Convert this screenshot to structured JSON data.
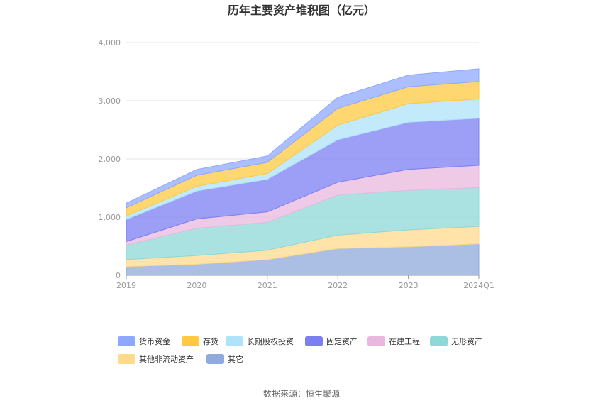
{
  "chart_data": {
    "type": "area",
    "stacked": true,
    "title": "历年主要资产堆积图（亿元）",
    "categories": [
      "2019",
      "2020",
      "2021",
      "2022",
      "2023",
      "2024Q1"
    ],
    "y_ticks": [
      "0",
      "1,000",
      "2,000",
      "3,000",
      "4,000"
    ],
    "ylim": [
      0,
      4000
    ],
    "grid": true,
    "legend_position": "bottom",
    "source": "数据来源：恒生聚源",
    "series": [
      {
        "name": "其它",
        "color": "#8faadc",
        "values": [
          150,
          190,
          270,
          460,
          490,
          540
        ]
      },
      {
        "name": "其他非流动资产",
        "color": "#ffd98c",
        "values": [
          120,
          150,
          160,
          230,
          290,
          300
        ]
      },
      {
        "name": "无形资产",
        "color": "#8ed8d8",
        "values": [
          250,
          470,
          480,
          690,
          680,
          670
        ]
      },
      {
        "name": "在建工程",
        "color": "#e9b8de",
        "values": [
          60,
          160,
          180,
          220,
          360,
          380
        ]
      },
      {
        "name": "固定资产",
        "color": "#7b7ff2",
        "values": [
          380,
          480,
          560,
          730,
          810,
          810
        ]
      },
      {
        "name": "长期股权投资",
        "color": "#aee3fa",
        "values": [
          60,
          80,
          100,
          250,
          320,
          330
        ]
      },
      {
        "name": "存货",
        "color": "#ffc940",
        "values": [
          140,
          190,
          190,
          290,
          290,
          300
        ]
      },
      {
        "name": "货币资金",
        "color": "#8fa8ff",
        "values": [
          80,
          100,
          110,
          190,
          200,
          220
        ]
      }
    ],
    "legend_order": [
      "货币资金",
      "存货",
      "长期股权投资",
      "固定资产",
      "在建工程",
      "无形资产",
      "其他非流动资产",
      "其它"
    ]
  }
}
